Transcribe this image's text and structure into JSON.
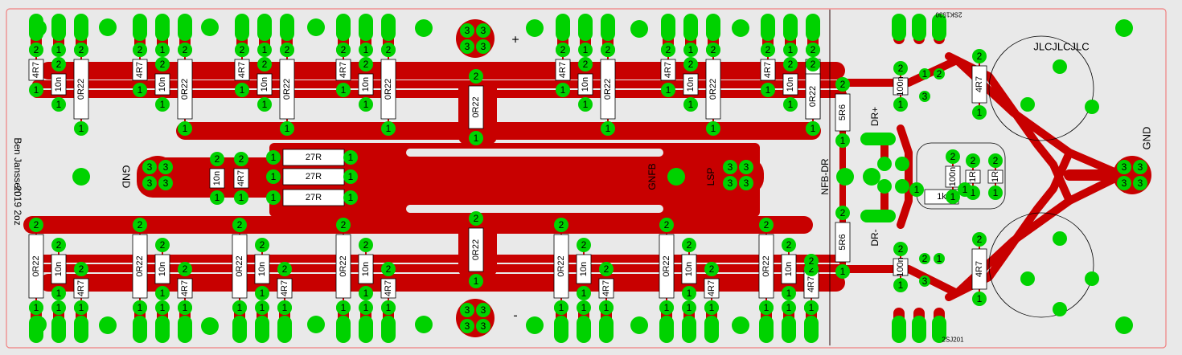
{
  "colors": {
    "background": "#e9e9e9",
    "outline": "#f08080",
    "copper": "#c80000",
    "pad": "#00d200",
    "pad_hole": "#40c8c8",
    "silkscreen": "#000000",
    "body": "#ffffff"
  },
  "labels": {
    "plus": "+",
    "minus": "-",
    "gnd_left": "GND",
    "gnd_right": "GND",
    "gnfb": "GNFB",
    "lsp": "LSP",
    "nfb_dr": "NFB-DR",
    "dr_plus": "DR+",
    "dr_minus": "DR-",
    "jlc": "JLCJLCJLC",
    "author": "Ben Janssen",
    "year": "2019 2oz",
    "part_top": "2SK1530",
    "part_bottom": "2SJ201"
  },
  "parts": {
    "r_4r7": "4R7",
    "c_10n": "10n",
    "r_0r22": "0R22",
    "r_27r": "27R",
    "r_5r6": "5R6",
    "c_100n": "100n",
    "r_1k": "1k",
    "r_1r": "1R"
  },
  "pin_numbers": {
    "one": "1",
    "two": "2",
    "three": "3"
  }
}
